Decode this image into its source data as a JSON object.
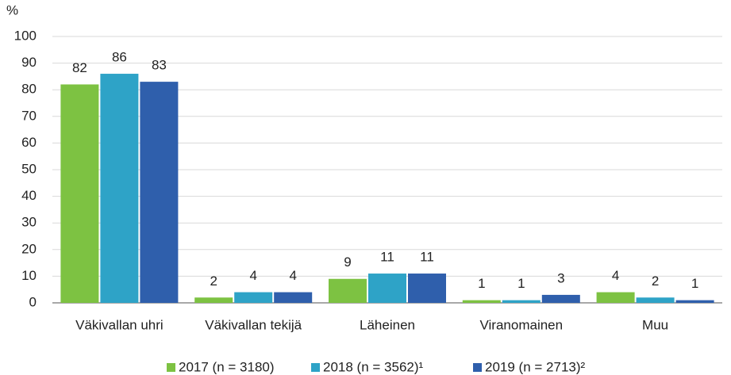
{
  "chart_data": {
    "type": "bar",
    "y_label": "%",
    "categories": [
      "Väkivallan uhri",
      "Väkivallan tekijä",
      "Läheinen",
      "Viranomainen",
      "Muu"
    ],
    "series": [
      {
        "name": "2017 (n = 3180)",
        "color": "#7dc242",
        "values": [
          82,
          2,
          9,
          1,
          4
        ]
      },
      {
        "name": "2018 (n = 3562)¹",
        "color": "#2ea3c7",
        "values": [
          86,
          4,
          11,
          1,
          2
        ]
      },
      {
        "name": "2019 (n = 2713)²",
        "color": "#2f5fac",
        "values": [
          83,
          4,
          11,
          3,
          1
        ]
      }
    ],
    "ylim": [
      0,
      100
    ],
    "yticks": [
      0,
      10,
      20,
      30,
      40,
      50,
      60,
      70,
      80,
      90,
      100
    ],
    "grid": true,
    "legend": "bottom"
  }
}
